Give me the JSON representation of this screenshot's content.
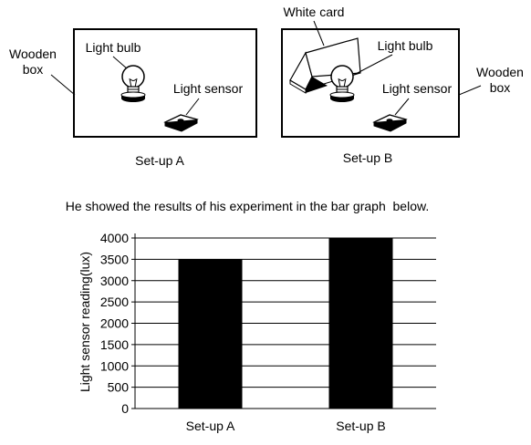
{
  "setup_a": {
    "box_label": "Wooden box",
    "bulb_label": "Light bulb",
    "sensor_label": "Light sensor",
    "caption": "Set-up A"
  },
  "setup_b": {
    "card_label": "White card",
    "bulb_label": "Light bulb",
    "sensor_label": "Light sensor",
    "box_label": "Wooden box",
    "caption": "Set-up B"
  },
  "sentence": "He showed the results of his experiment in the bar graph  below.",
  "chart_data": {
    "type": "bar",
    "categories": [
      "Set-up A",
      "Set-up B"
    ],
    "values": [
      3500,
      4000
    ],
    "ylabel": "Light sensor reading(lux)",
    "ylim": [
      0,
      4000
    ],
    "yticks": [
      0,
      500,
      1000,
      1500,
      2000,
      2500,
      3000,
      3500,
      4000
    ],
    "grid": true,
    "bar_color": "#000000"
  }
}
